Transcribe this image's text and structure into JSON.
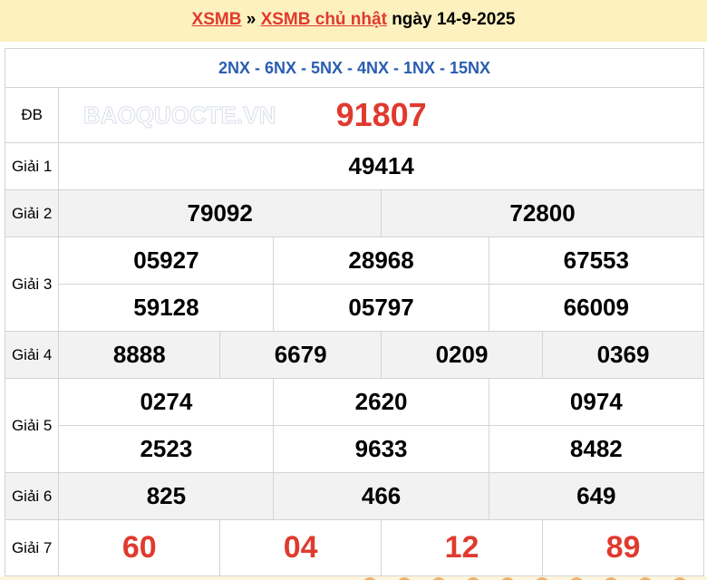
{
  "header": {
    "link1": "XSMB",
    "sep": "»",
    "link2": "XSMB chủ nhật",
    "date_text": "ngày 14-9-2025"
  },
  "codes": "2NX - 6NX - 5NX - 4NX - 1NX - 15NX",
  "prizes": {
    "db": {
      "label": "ĐB",
      "numbers": [
        "91807"
      ]
    },
    "g1": {
      "label": "Giải 1",
      "numbers": [
        "49414"
      ]
    },
    "g2": {
      "label": "Giải 2",
      "numbers": [
        "79092",
        "72800"
      ]
    },
    "g3": {
      "label": "Giải 3",
      "numbers": [
        "05927",
        "28968",
        "67553",
        "59128",
        "05797",
        "66009"
      ]
    },
    "g4": {
      "label": "Giải 4",
      "numbers": [
        "8888",
        "6679",
        "0209",
        "0369"
      ]
    },
    "g5": {
      "label": "Giải 5",
      "numbers": [
        "0274",
        "2620",
        "0974",
        "2523",
        "9633",
        "8482"
      ]
    },
    "g6": {
      "label": "Giải 6",
      "numbers": [
        "825",
        "466",
        "649"
      ]
    },
    "g7": {
      "label": "Giải 7",
      "numbers": [
        "60",
        "04",
        "12",
        "89"
      ]
    }
  },
  "watermark": "BAOQUOCTE.VN",
  "colors": {
    "red": "#e03a2f",
    "blue": "#2a5db0",
    "header_bg": "#fdf1c0"
  }
}
